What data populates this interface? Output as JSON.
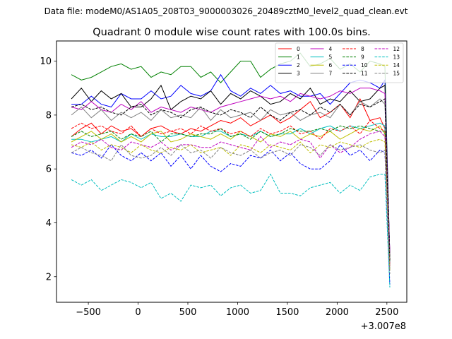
{
  "suptitle": "Data file: modeM0/AS1A05_208T03_9000003026_20489cztM0_level2_quad_clean.evt",
  "chart_data": {
    "type": "line",
    "title": "Quadrant 0 module wise count rates with 100.0s bins.",
    "xlabel": "",
    "ylabel": "",
    "x_offset_label": "+3.007e8",
    "xlim": [
      -820,
      2700
    ],
    "ylim": [
      1.05,
      10.75
    ],
    "x_ticks": [
      -500,
      0,
      500,
      1000,
      1500,
      2000,
      2500
    ],
    "x_tick_labels": [
      "−500",
      "0",
      "500",
      "1000",
      "1500",
      "2000",
      "2500"
    ],
    "y_ticks": [
      2,
      4,
      6,
      8,
      10
    ],
    "y_tick_labels": [
      "2",
      "4",
      "6",
      "8",
      "10"
    ],
    "x": [
      -670,
      -570,
      -470,
      -370,
      -270,
      -170,
      -70,
      30,
      130,
      230,
      330,
      430,
      530,
      630,
      730,
      830,
      930,
      1030,
      1130,
      1230,
      1330,
      1430,
      1530,
      1630,
      1730,
      1830,
      1930,
      2030,
      2130,
      2230,
      2330,
      2430,
      2480,
      2530
    ],
    "series": [
      {
        "name": "0",
        "color": "#ff0000",
        "dash": "solid",
        "values": [
          7.2,
          7.5,
          7.7,
          7.3,
          7.6,
          7.4,
          7.5,
          7.2,
          7.5,
          7.6,
          7.4,
          7.3,
          7.5,
          7.4,
          7.6,
          7.8,
          7.7,
          7.9,
          7.6,
          7.8,
          8.0,
          7.7,
          7.9,
          8.2,
          8.5,
          7.9,
          8.1,
          8.4,
          7.9,
          8.6,
          7.8,
          7.9,
          7.5,
          2.9
        ]
      },
      {
        "name": "1",
        "color": "#008000",
        "dash": "solid",
        "values": [
          9.5,
          9.3,
          9.4,
          9.6,
          9.8,
          9.9,
          9.7,
          9.8,
          9.4,
          9.6,
          9.5,
          9.8,
          9.8,
          9.4,
          9.6,
          9.2,
          9.6,
          10.0,
          10.0,
          9.4,
          9.7,
          9.9,
          10.0,
          10.3,
          9.8,
          9.9,
          10.1,
          9.7,
          9.9,
          9.6,
          10.0,
          9.9,
          9.8,
          2.6
        ]
      },
      {
        "name": "2",
        "color": "#0000ff",
        "dash": "solid",
        "values": [
          8.4,
          8.4,
          8.7,
          8.4,
          8.3,
          8.8,
          8.6,
          8.6,
          8.9,
          8.6,
          8.7,
          9.1,
          8.8,
          8.7,
          8.9,
          9.5,
          8.9,
          8.7,
          9.0,
          8.8,
          9.1,
          8.8,
          8.9,
          8.7,
          8.7,
          8.8,
          8.4,
          8.8,
          9.2,
          9.3,
          9.2,
          9.0,
          9.3,
          2.8
        ]
      },
      {
        "name": "3",
        "color": "#000000",
        "dash": "solid",
        "values": [
          8.6,
          9.0,
          8.5,
          8.9,
          8.6,
          8.8,
          8.3,
          8.3,
          8.6,
          9.1,
          8.2,
          8.5,
          8.7,
          8.6,
          8.9,
          8.4,
          8.8,
          8.6,
          8.9,
          8.7,
          8.4,
          8.5,
          8.8,
          8.6,
          9.0,
          8.4,
          8.6,
          8.5,
          8.9,
          8.5,
          8.6,
          9.0,
          9.1,
          2.7
        ]
      },
      {
        "name": "4",
        "color": "#bf00bf",
        "dash": "solid",
        "values": [
          8.3,
          8.2,
          8.5,
          8.2,
          8.1,
          8.4,
          8.2,
          8.5,
          8.1,
          8.3,
          8.2,
          8.1,
          8.3,
          8.2,
          8.1,
          8.3,
          8.4,
          8.5,
          8.6,
          8.7,
          8.6,
          8.7,
          8.5,
          8.8,
          8.7,
          8.6,
          8.7,
          8.9,
          8.8,
          9.0,
          9.0,
          8.9,
          8.8,
          2.8
        ]
      },
      {
        "name": "5",
        "color": "#00bfbf",
        "dash": "solid",
        "values": [
          7.1,
          7.1,
          7.0,
          7.1,
          7.2,
          7.0,
          7.3,
          7.1,
          7.3,
          7.2,
          7.2,
          7.3,
          7.2,
          7.2,
          7.4,
          7.4,
          7.2,
          7.3,
          7.2,
          7.4,
          7.2,
          7.3,
          7.3,
          7.5,
          7.3,
          7.5,
          7.6,
          7.4,
          7.6,
          7.5,
          7.6,
          7.7,
          7.6,
          2.5
        ]
      },
      {
        "name": "6",
        "color": "#bfbf00",
        "dash": "solid",
        "values": [
          7.0,
          7.2,
          7.4,
          7.1,
          7.3,
          7.0,
          7.2,
          7.0,
          7.3,
          7.4,
          7.0,
          7.1,
          7.3,
          7.2,
          7.1,
          7.3,
          7.1,
          7.4,
          7.2,
          7.0,
          7.3,
          7.2,
          7.4,
          7.1,
          7.3,
          7.2,
          7.4,
          7.1,
          7.3,
          7.5,
          7.4,
          7.6,
          7.3,
          2.6
        ]
      },
      {
        "name": "7",
        "color": "#808080",
        "dash": "solid",
        "values": [
          8.0,
          8.3,
          7.9,
          8.2,
          7.8,
          8.1,
          7.9,
          8.1,
          7.8,
          8.2,
          7.9,
          8.0,
          7.9,
          8.3,
          7.8,
          8.2,
          7.9,
          8.0,
          8.1,
          7.8,
          8.2,
          8.0,
          8.1,
          7.8,
          8.0,
          8.1,
          7.9,
          8.4,
          8.0,
          8.5,
          8.3,
          8.6,
          8.4,
          2.7
        ]
      },
      {
        "name": "8",
        "color": "#ff0000",
        "dash": "dashed",
        "values": [
          7.5,
          7.7,
          7.5,
          7.6,
          7.4,
          7.3,
          7.6,
          7.2,
          7.5,
          7.3,
          7.4,
          7.5,
          7.3,
          7.6,
          7.4,
          7.5,
          7.3,
          7.4,
          7.2,
          7.5,
          7.3,
          7.4,
          7.6,
          7.3,
          7.4,
          7.1,
          7.5,
          7.4,
          7.6,
          7.3,
          7.8,
          7.5,
          7.4,
          2.4
        ]
      },
      {
        "name": "9",
        "color": "#008000",
        "dash": "dashed",
        "values": [
          7.2,
          7.4,
          7.2,
          7.3,
          7.4,
          7.1,
          7.3,
          7.2,
          7.4,
          7.0,
          7.3,
          7.3,
          7.2,
          7.3,
          7.3,
          7.5,
          7.2,
          7.3,
          7.1,
          7.4,
          7.2,
          7.3,
          7.5,
          7.4,
          7.4,
          7.5,
          7.4,
          7.6,
          7.5,
          7.6,
          7.5,
          7.4,
          7.4,
          2.3
        ]
      },
      {
        "name": "10",
        "color": "#0000ff",
        "dash": "dashed",
        "values": [
          6.6,
          6.5,
          6.7,
          6.4,
          6.9,
          6.5,
          6.3,
          6.6,
          6.3,
          6.6,
          6.1,
          6.5,
          6.0,
          6.5,
          6.1,
          5.9,
          6.2,
          6.1,
          6.5,
          6.4,
          6.7,
          6.3,
          6.6,
          6.2,
          6.0,
          6.0,
          6.3,
          6.9,
          6.5,
          6.7,
          6.3,
          6.7,
          6.6,
          1.7
        ]
      },
      {
        "name": "11",
        "color": "#000000",
        "dash": "dashed",
        "values": [
          8.3,
          8.4,
          8.2,
          8.3,
          8.1,
          8.0,
          8.3,
          8.4,
          8.0,
          8.2,
          8.1,
          7.9,
          8.2,
          8.3,
          8.1,
          8.0,
          8.2,
          8.1,
          7.9,
          8.3,
          8.0,
          7.8,
          8.1,
          8.2,
          8.0,
          8.3,
          8.1,
          8.4,
          8.0,
          8.4,
          8.3,
          8.5,
          8.6,
          2.6
        ]
      },
      {
        "name": "12",
        "color": "#bf00bf",
        "dash": "dashed",
        "values": [
          6.8,
          7.0,
          6.9,
          7.1,
          6.8,
          6.7,
          7.0,
          6.9,
          6.8,
          7.0,
          6.7,
          6.9,
          6.9,
          6.8,
          6.8,
          7.0,
          6.9,
          6.8,
          6.7,
          7.2,
          6.8,
          7.0,
          6.9,
          7.1,
          7.0,
          6.4,
          6.9,
          6.6,
          6.8,
          7.1,
          7.3,
          7.4,
          7.2,
          2.3
        ]
      },
      {
        "name": "13",
        "color": "#00bfbf",
        "dash": "dashed",
        "values": [
          5.6,
          5.4,
          5.6,
          5.2,
          5.4,
          5.6,
          5.5,
          5.3,
          5.5,
          4.9,
          5.1,
          4.8,
          5.4,
          5.3,
          5.4,
          5.0,
          5.3,
          5.4,
          5.1,
          5.2,
          5.8,
          5.1,
          5.1,
          5.0,
          5.3,
          5.4,
          5.5,
          5.1,
          5.4,
          5.2,
          5.7,
          5.8,
          5.8,
          1.6
        ]
      },
      {
        "name": "14",
        "color": "#bfbf00",
        "dash": "dashed",
        "values": [
          6.9,
          6.8,
          7.0,
          6.7,
          6.9,
          6.8,
          6.6,
          6.9,
          6.7,
          6.6,
          6.8,
          6.7,
          6.9,
          6.6,
          6.7,
          6.8,
          6.5,
          6.9,
          6.8,
          6.6,
          6.9,
          6.8,
          6.7,
          7.0,
          6.6,
          6.9,
          6.8,
          7.0,
          6.9,
          6.8,
          7.0,
          7.1,
          7.0,
          2.2
        ]
      },
      {
        "name": "15",
        "color": "#808080",
        "dash": "dashed",
        "values": [
          6.6,
          6.8,
          6.6,
          6.5,
          6.3,
          6.9,
          6.5,
          6.4,
          6.5,
          6.8,
          6.5,
          6.9,
          6.6,
          6.7,
          6.4,
          6.8,
          6.6,
          6.5,
          6.7,
          6.4,
          6.6,
          6.7,
          6.5,
          6.9,
          6.8,
          6.5,
          6.9,
          6.7,
          6.8,
          6.9,
          6.7,
          6.6,
          6.7,
          2.1
        ]
      }
    ],
    "legend": {
      "placement": "top-right",
      "columns": 4
    }
  }
}
